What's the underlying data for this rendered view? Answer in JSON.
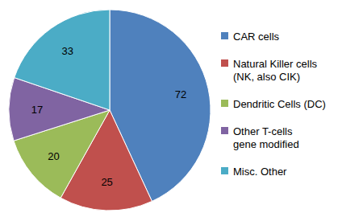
{
  "chart_data": {
    "type": "pie",
    "categories": [
      "CAR cells",
      "Natural Killer cells\n(NK, also CIK)",
      "Dendritic Cells (DC)",
      "Other T-cells\ngene modified",
      "Misc. Other"
    ],
    "values": [
      72,
      25,
      20,
      17,
      33
    ],
    "colors": [
      "#4f81bd",
      "#c0504d",
      "#9bbb59",
      "#8064a2",
      "#4bacc6"
    ],
    "data_labels": true,
    "legend": "right"
  }
}
